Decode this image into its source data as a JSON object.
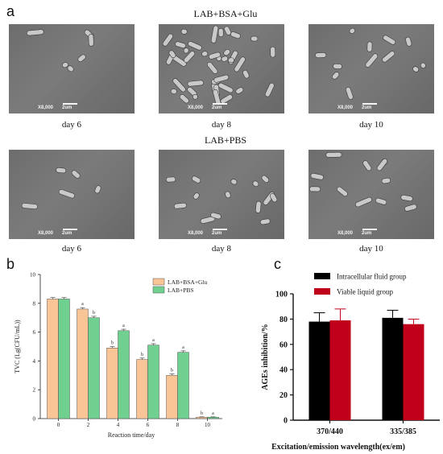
{
  "panel_a": {
    "letter": "a",
    "row1_title": "LAB+BSA+Glu",
    "row2_title": "LAB+PBS",
    "magnification": "X8,000",
    "scale_label": "2um",
    "captions": [
      "day 6",
      "day 8",
      "day 10"
    ]
  },
  "panel_b": {
    "letter": "b"
  },
  "panel_c": {
    "letter": "c"
  },
  "chart_data": [
    {
      "type": "bar",
      "xlabel": "Reaction time/day",
      "ylabel": "TVC (Lg(CFU/mL))",
      "categories": [
        "0",
        "2",
        "4",
        "6",
        "8",
        "10"
      ],
      "ylim": [
        0,
        10
      ],
      "yticks": [
        0,
        2,
        4,
        6,
        8,
        10
      ],
      "legend_position": "top-right",
      "series": [
        {
          "name": "LAB+BSA+Glu",
          "color": "#f9c596",
          "values": [
            8.3,
            7.6,
            4.9,
            4.1,
            3.0,
            0.1
          ],
          "errors": [
            0.1,
            0.1,
            0.1,
            0.1,
            0.1,
            0.02
          ],
          "letters": [
            "",
            "a",
            "b",
            "b",
            "b",
            "b"
          ]
        },
        {
          "name": "LAB+PBS",
          "color": "#6fd08f",
          "values": [
            8.3,
            7.0,
            6.1,
            5.1,
            4.6,
            0.1
          ],
          "errors": [
            0.1,
            0.1,
            0.1,
            0.1,
            0.1,
            0.02
          ],
          "letters": [
            "",
            "b",
            "a",
            "a",
            "a",
            "a"
          ]
        }
      ]
    },
    {
      "type": "bar",
      "xlabel": "Excitation/emission wavelength(ex/em)",
      "ylabel": "AGEs inhibition/%",
      "categories": [
        "370/440",
        "335/385"
      ],
      "ylim": [
        0,
        100
      ],
      "yticks": [
        0,
        20,
        40,
        60,
        80,
        100
      ],
      "legend_position": "top-left",
      "series": [
        {
          "name": "Intracellular fluid group",
          "color": "#000000",
          "values": [
            78,
            81
          ],
          "errors": [
            7,
            6
          ]
        },
        {
          "name": "Viable liquid group",
          "color": "#c0001a",
          "values": [
            79,
            76
          ],
          "errors": [
            9,
            4
          ]
        }
      ]
    }
  ]
}
